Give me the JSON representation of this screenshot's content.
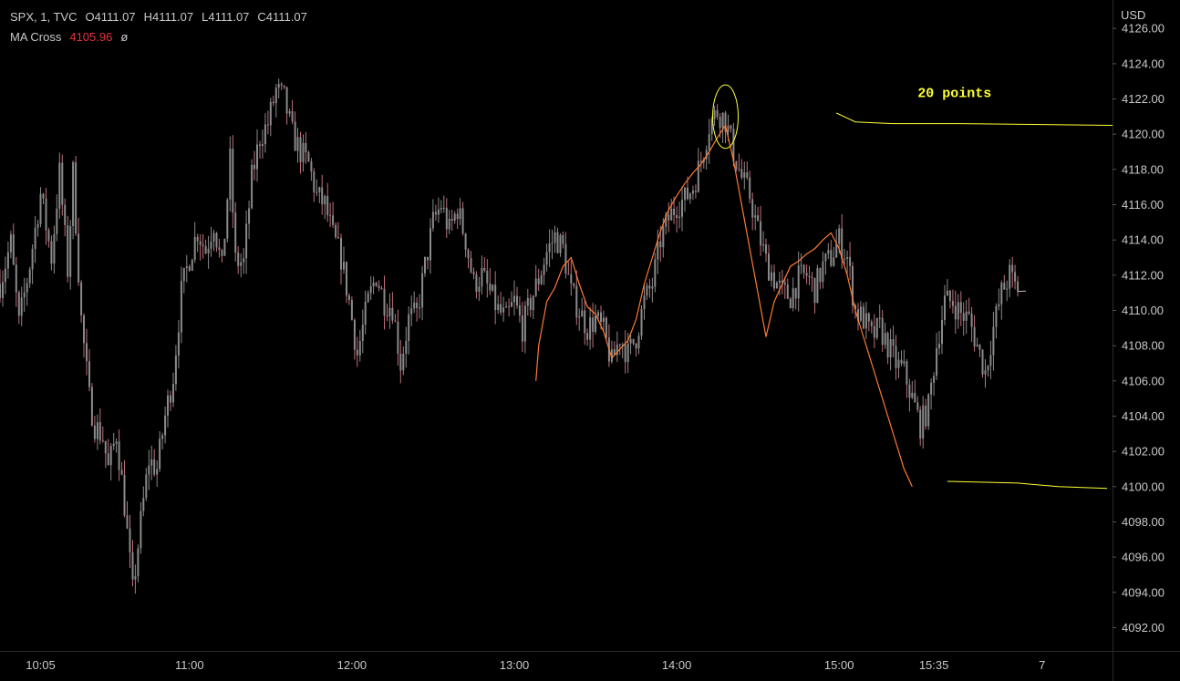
{
  "header": {
    "symbol": "SPX, 1, TVC",
    "open": "O4111.07",
    "high": "H4111.07",
    "low": "L4111.07",
    "close": "C4111.07",
    "indicator_name": "MA Cross",
    "indicator_value": "4105.96",
    "indicator_symbol": "ø"
  },
  "colors": {
    "background": "#000000",
    "candles": "#8a8a8a",
    "candle_down_tint": "#c0707a",
    "ma_line": "#ff7a33",
    "annotation": "#ffff33",
    "axis_text": "#c9c9c9",
    "axis_border": "#2a2a2a"
  },
  "chart_data": {
    "type": "line",
    "currency_label": "USD",
    "y_ticks": [
      "4126.00",
      "4124.00",
      "4122.00",
      "4120.00",
      "4118.00",
      "4116.00",
      "4114.00",
      "4112.00",
      "4110.00",
      "4108.00",
      "4106.00",
      "4104.00",
      "4102.00",
      "4100.00",
      "4098.00",
      "4096.00",
      "4094.00",
      "4092.00"
    ],
    "y_range": [
      4091.3,
      4127.2
    ],
    "x_ticks": [
      "10:05",
      "11:00",
      "12:00",
      "13:00",
      "14:00",
      "15:00",
      "15:35",
      "7"
    ],
    "x_tick_times": [
      "10:05",
      "11:00",
      "12:00",
      "13:00",
      "14:00",
      "15:00",
      "15:35",
      "16:15"
    ],
    "x_range": [
      "09:50",
      "16:41"
    ],
    "price_path": [
      [
        "09:50",
        4111.5
      ],
      [
        "09:54",
        4113.8
      ],
      [
        "09:57",
        4109.2
      ],
      [
        "10:01",
        4112.6
      ],
      [
        "10:05",
        4116.6
      ],
      [
        "10:09",
        4113.0
      ],
      [
        "10:12",
        4117.8
      ],
      [
        "10:15",
        4112.3
      ],
      [
        "10:17",
        4117.8
      ],
      [
        "10:20",
        4109.5
      ],
      [
        "10:23",
        4105.0
      ],
      [
        "10:25",
        4103.5
      ],
      [
        "10:28",
        4102.8
      ],
      [
        "10:30",
        4101.0
      ],
      [
        "10:33",
        4103.0
      ],
      [
        "10:36",
        4099.0
      ],
      [
        "10:39",
        4094.0
      ],
      [
        "10:42",
        4098.0
      ],
      [
        "10:45",
        4101.5
      ],
      [
        "10:48",
        4101.0
      ],
      [
        "10:51",
        4104.0
      ],
      [
        "10:54",
        4106.3
      ],
      [
        "10:57",
        4111.0
      ],
      [
        "11:00",
        4113.0
      ],
      [
        "11:03",
        4114.5
      ],
      [
        "11:06",
        4113.4
      ],
      [
        "11:09",
        4115.0
      ],
      [
        "11:12",
        4112.3
      ],
      [
        "11:15",
        4118.5
      ],
      [
        "11:17",
        4112.8
      ],
      [
        "11:20",
        4112.7
      ],
      [
        "11:23",
        4117.5
      ],
      [
        "11:26",
        4119.8
      ],
      [
        "11:29",
        4120.6
      ],
      [
        "11:32",
        4122.5
      ],
      [
        "11:35",
        4122.0
      ],
      [
        "11:38",
        4120.0
      ],
      [
        "11:41",
        4119.0
      ],
      [
        "11:44",
        4118.3
      ],
      [
        "11:47",
        4116.5
      ],
      [
        "11:50",
        4116.0
      ],
      [
        "11:53",
        4114.2
      ],
      [
        "11:56",
        4113.0
      ],
      [
        "11:59",
        4110.5
      ],
      [
        "12:02",
        4107.5
      ],
      [
        "12:06",
        4110.5
      ],
      [
        "12:09",
        4112.0
      ],
      [
        "12:12",
        4110.5
      ],
      [
        "12:15",
        4110.2
      ],
      [
        "12:18",
        4107.0
      ],
      [
        "12:21",
        4109.5
      ],
      [
        "12:24",
        4109.8
      ],
      [
        "12:27",
        4112.5
      ],
      [
        "12:30",
        4115.0
      ],
      [
        "12:33",
        4116.0
      ],
      [
        "12:36",
        4114.5
      ],
      [
        "12:39",
        4115.8
      ],
      [
        "12:42",
        4114.0
      ],
      [
        "12:45",
        4111.5
      ],
      [
        "12:48",
        4112.0
      ],
      [
        "12:51",
        4111.0
      ],
      [
        "12:54",
        4110.0
      ],
      [
        "12:57",
        4109.5
      ],
      [
        "13:00",
        4110.5
      ],
      [
        "13:03",
        4109.0
      ],
      [
        "13:06",
        4110.5
      ],
      [
        "13:09",
        4111.8
      ],
      [
        "13:12",
        4113.3
      ],
      [
        "13:15",
        4114.2
      ],
      [
        "13:18",
        4113.5
      ],
      [
        "13:21",
        4111.0
      ],
      [
        "13:24",
        4110.0
      ],
      [
        "13:27",
        4109.0
      ],
      [
        "13:30",
        4109.5
      ],
      [
        "13:33",
        4108.8
      ],
      [
        "13:36",
        4107.0
      ],
      [
        "13:39",
        4108.5
      ],
      [
        "13:42",
        4107.5
      ],
      [
        "13:45",
        4108.5
      ],
      [
        "13:48",
        4110.5
      ],
      [
        "13:51",
        4111.5
      ],
      [
        "13:54",
        4114.0
      ],
      [
        "13:57",
        4115.2
      ],
      [
        "14:00",
        4116.0
      ],
      [
        "14:03",
        4116.3
      ],
      [
        "14:06",
        4117.0
      ],
      [
        "14:09",
        4118.5
      ],
      [
        "14:12",
        4120.5
      ],
      [
        "14:15",
        4121.3
      ],
      [
        "14:18",
        4120.8
      ],
      [
        "14:21",
        4119.0
      ],
      [
        "14:24",
        4117.5
      ],
      [
        "14:27",
        4116.5
      ],
      [
        "14:30",
        4114.5
      ],
      [
        "14:33",
        4112.8
      ],
      [
        "14:36",
        4111.8
      ],
      [
        "14:39",
        4111.0
      ],
      [
        "14:42",
        4110.8
      ],
      [
        "14:45",
        4111.8
      ],
      [
        "14:48",
        4112.0
      ],
      [
        "14:51",
        4111.2
      ],
      [
        "14:54",
        4112.5
      ],
      [
        "14:57",
        4113.0
      ],
      [
        "15:00",
        4114.0
      ],
      [
        "15:03",
        4113.0
      ],
      [
        "15:06",
        4110.0
      ],
      [
        "15:09",
        4109.5
      ],
      [
        "15:12",
        4108.5
      ],
      [
        "15:15",
        4109.0
      ],
      [
        "15:18",
        4108.0
      ],
      [
        "15:21",
        4107.0
      ],
      [
        "15:24",
        4106.5
      ],
      [
        "15:27",
        4105.0
      ],
      [
        "15:30",
        4103.5
      ],
      [
        "15:33",
        4104.5
      ],
      [
        "15:36",
        4108.0
      ],
      [
        "15:39",
        4110.5
      ],
      [
        "15:42",
        4110.5
      ],
      [
        "15:45",
        4109.8
      ],
      [
        "15:48",
        4109.5
      ],
      [
        "15:51",
        4108.0
      ],
      [
        "15:54",
        4106.5
      ],
      [
        "15:57",
        4109.0
      ],
      [
        "16:00",
        4111.0
      ],
      [
        "16:03",
        4112.0
      ],
      [
        "16:06",
        4111.07
      ]
    ],
    "ma_path": [
      [
        "13:08",
        4106.0
      ],
      [
        "13:09",
        4108.0
      ],
      [
        "13:12",
        4110.5
      ],
      [
        "13:15",
        4111.3
      ],
      [
        "13:18",
        4112.5
      ],
      [
        "13:21",
        4113.0
      ],
      [
        "13:24",
        4111.5
      ],
      [
        "13:27",
        4110.2
      ],
      [
        "13:30",
        4109.8
      ],
      [
        "13:33",
        4108.8
      ],
      [
        "13:36",
        4107.3
      ],
      [
        "13:39",
        4107.8
      ],
      [
        "13:42",
        4108.3
      ],
      [
        "13:45",
        4109.5
      ],
      [
        "13:48",
        4111.5
      ],
      [
        "13:51",
        4113.0
      ],
      [
        "13:54",
        4114.5
      ],
      [
        "13:57",
        4115.7
      ],
      [
        "14:00",
        4116.5
      ],
      [
        "14:03",
        4117.2
      ],
      [
        "14:06",
        4117.8
      ],
      [
        "14:09",
        4118.3
      ],
      [
        "14:12",
        4119.0
      ],
      [
        "14:15",
        4119.8
      ],
      [
        "14:18",
        4120.5
      ],
      [
        "14:21",
        4118.5
      ],
      [
        "14:24",
        4116.0
      ],
      [
        "14:27",
        4113.5
      ],
      [
        "14:30",
        4111.0
      ],
      [
        "14:33",
        4108.5
      ],
      [
        "14:36",
        4110.5
      ],
      [
        "14:39",
        4111.5
      ],
      [
        "14:42",
        4112.5
      ],
      [
        "14:45",
        4112.8
      ],
      [
        "14:48",
        4113.2
      ],
      [
        "14:51",
        4113.5
      ],
      [
        "14:54",
        4114.0
      ],
      [
        "14:57",
        4114.4
      ],
      [
        "15:00",
        4113.5
      ],
      [
        "15:03",
        4112.0
      ],
      [
        "15:06",
        4110.0
      ],
      [
        "15:09",
        4108.5
      ],
      [
        "15:12",
        4107.0
      ],
      [
        "15:15",
        4105.5
      ],
      [
        "15:18",
        4104.0
      ],
      [
        "15:21",
        4102.5
      ],
      [
        "15:24",
        4101.0
      ],
      [
        "15:27",
        4100.0
      ]
    ],
    "ma_tail": [
      [
        "16:06",
        4111.07
      ],
      [
        "16:09",
        4111.1
      ]
    ],
    "annotations": {
      "text": "20 points",
      "text_at": [
        "15:29",
        4122.1
      ],
      "circle_center": [
        "14:18",
        4121.0
      ],
      "circle_radius": [
        4.7,
        1.8
      ],
      "high_line": [
        [
          "14:59",
          4121.2
        ],
        [
          "15:06",
          4120.7
        ],
        [
          "15:20",
          4120.6
        ],
        [
          "15:45",
          4120.6
        ],
        [
          "16:41",
          4120.5
        ]
      ],
      "low_line": [
        [
          "15:40",
          4100.3
        ],
        [
          "16:06",
          4100.2
        ],
        [
          "16:21",
          4100.0
        ],
        [
          "16:39",
          4099.9
        ]
      ]
    }
  }
}
